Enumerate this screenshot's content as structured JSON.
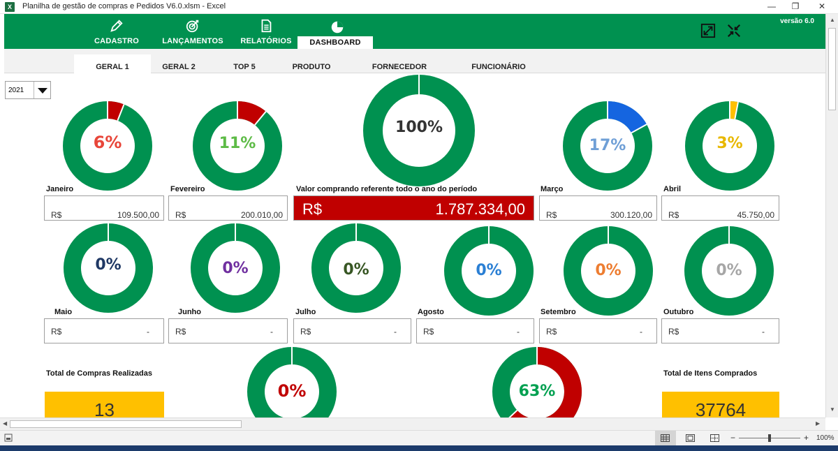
{
  "window": {
    "title": "Planilha de gestão de compras e Pedidos V6.0.xlsm - Excel",
    "app_icon": "X",
    "minimize": "—",
    "restore": "❐",
    "close": "✕"
  },
  "ribbon": {
    "buttons": [
      {
        "label": "CADASTRO",
        "icon": "pencil-icon"
      },
      {
        "label": "LANÇAMENTOS",
        "icon": "target-icon"
      },
      {
        "label": "RELATÓRIOS",
        "icon": "document-icon"
      },
      {
        "label": "DASHBOARD",
        "icon": "pie-chart-icon"
      }
    ],
    "version": "versão 6.0"
  },
  "subtabs": [
    "GERAL 1",
    "GERAL 2",
    "TOP 5",
    "PRODUTO",
    "FORNECEDOR",
    "FUNCIONÁRIO"
  ],
  "year_selector": {
    "value": "2021"
  },
  "colors": {
    "green": "#009150",
    "red": "#c00000",
    "yellow": "#ffc000"
  },
  "months_top": [
    {
      "name": "Janeiro",
      "pct": "6%",
      "value": 0.06,
      "slice_color": "#c00000",
      "text_color": "#e8463a",
      "currency": "R$",
      "amount": "109.500,00"
    },
    {
      "name": "Fevereiro",
      "pct": "11%",
      "value": 0.11,
      "slice_color": "#c00000",
      "text_color": "#5dbb46",
      "currency": "R$",
      "amount": "200.010,00"
    },
    {
      "name": "Março",
      "pct": "17%",
      "value": 0.17,
      "slice_color": "#1565e0",
      "text_color": "#6f9fd6",
      "currency": "R$",
      "amount": "300.120,00"
    },
    {
      "name": "Abril",
      "pct": "3%",
      "value": 0.03,
      "slice_color": "#ffc000",
      "text_color": "#e8b800",
      "currency": "R$",
      "amount": "45.750,00"
    }
  ],
  "annual": {
    "pct": "100%",
    "label": "Valor comprando referente todo o ano do período",
    "currency": "R$",
    "amount": "1.787.334,00"
  },
  "months_bottom": [
    {
      "name": "Maio",
      "pct": "0%",
      "text_color": "#1f3864",
      "currency": "R$",
      "amount": "-"
    },
    {
      "name": "Junho",
      "pct": "0%",
      "text_color": "#7030a0",
      "currency": "R$",
      "amount": "-"
    },
    {
      "name": "Julho",
      "pct": "0%",
      "text_color": "#375623",
      "currency": "R$",
      "amount": "-"
    },
    {
      "name": "Agosto",
      "pct": "0%",
      "text_color": "#2a7fd4",
      "currency": "R$",
      "amount": "-"
    },
    {
      "name": "Setembro",
      "pct": "0%",
      "text_color": "#ed7d31",
      "currency": "R$",
      "amount": "-"
    },
    {
      "name": "Outubro",
      "pct": "0%",
      "text_color": "#a6a6a6",
      "currency": "R$",
      "amount": "-"
    }
  ],
  "totals": {
    "compras_label": "Total de Compras Realizadas",
    "compras_value": "13",
    "itens_label": "Total de Itens Comprados",
    "itens_value": "37764",
    "donut_left": {
      "pct": "0%",
      "value": 0,
      "text_color": "#c00000"
    },
    "donut_right": {
      "pct": "63%",
      "value": 0.63,
      "text_color": "#00a050",
      "slice_color": "#c00000"
    }
  },
  "statusbar": {
    "zoom": "100%",
    "minus": "−",
    "plus": "+"
  }
}
